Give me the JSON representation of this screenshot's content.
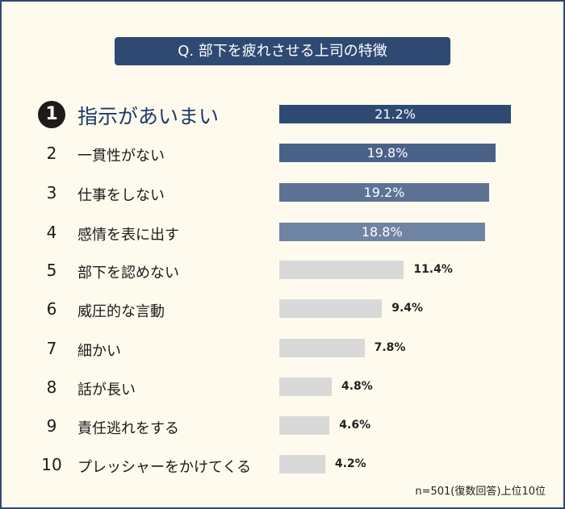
{
  "chart_data": {
    "type": "bar",
    "orientation": "horizontal",
    "title": "Q. 部下を疲れさせる上司の特徴",
    "ranks": [
      "1",
      "2",
      "3",
      "4",
      "5",
      "6",
      "7",
      "8",
      "9",
      "10"
    ],
    "categories": [
      "指示があいまい",
      "一貫性がない",
      "仕事をしない",
      "感情を表に出す",
      "部下を認めない",
      "威圧的な言動",
      "細かい",
      "話が長い",
      "責任逃れをする",
      "プレッシャーをかけてくる"
    ],
    "values": [
      21.2,
      19.8,
      19.2,
      18.8,
      11.4,
      9.4,
      7.8,
      4.8,
      4.6,
      4.2
    ],
    "labels": [
      "21.2%",
      "19.8%",
      "19.2%",
      "18.8%",
      "11.4%",
      "9.4%",
      "7.8%",
      "4.8%",
      "4.6%",
      "4.2%"
    ],
    "colors": [
      "#2e4a72",
      "#4a6288",
      "#5c7395",
      "#6f84a2",
      "#d9d9d9",
      "#d9d9d9",
      "#d9d9d9",
      "#d9d9d9",
      "#d9d9d9",
      "#d9d9d9"
    ],
    "note": "n=501(復数回答)上位10位",
    "xlim": [
      0,
      21.2
    ]
  }
}
